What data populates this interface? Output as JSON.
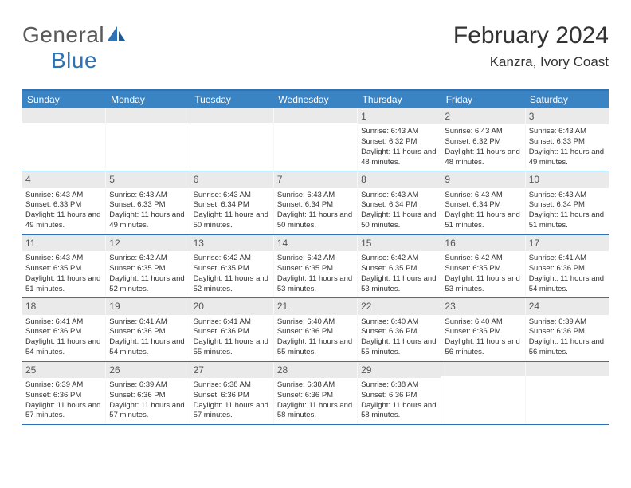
{
  "logo": {
    "text1": "General",
    "text2": "Blue"
  },
  "header": {
    "month_title": "February 2024",
    "location": "Kanzra, Ivory Coast"
  },
  "colors": {
    "header_bar": "#3a84c4",
    "border": "#2d73b5",
    "daynum_bg": "#eaeaea",
    "text": "#333333",
    "logo_gray": "#5a5a5a",
    "logo_blue": "#2d73b5"
  },
  "day_names": [
    "Sunday",
    "Monday",
    "Tuesday",
    "Wednesday",
    "Thursday",
    "Friday",
    "Saturday"
  ],
  "weeks": [
    [
      {
        "n": "",
        "sr": "",
        "ss": "",
        "dl": ""
      },
      {
        "n": "",
        "sr": "",
        "ss": "",
        "dl": ""
      },
      {
        "n": "",
        "sr": "",
        "ss": "",
        "dl": ""
      },
      {
        "n": "",
        "sr": "",
        "ss": "",
        "dl": ""
      },
      {
        "n": "1",
        "sr": "Sunrise: 6:43 AM",
        "ss": "Sunset: 6:32 PM",
        "dl": "Daylight: 11 hours and 48 minutes."
      },
      {
        "n": "2",
        "sr": "Sunrise: 6:43 AM",
        "ss": "Sunset: 6:32 PM",
        "dl": "Daylight: 11 hours and 48 minutes."
      },
      {
        "n": "3",
        "sr": "Sunrise: 6:43 AM",
        "ss": "Sunset: 6:33 PM",
        "dl": "Daylight: 11 hours and 49 minutes."
      }
    ],
    [
      {
        "n": "4",
        "sr": "Sunrise: 6:43 AM",
        "ss": "Sunset: 6:33 PM",
        "dl": "Daylight: 11 hours and 49 minutes."
      },
      {
        "n": "5",
        "sr": "Sunrise: 6:43 AM",
        "ss": "Sunset: 6:33 PM",
        "dl": "Daylight: 11 hours and 49 minutes."
      },
      {
        "n": "6",
        "sr": "Sunrise: 6:43 AM",
        "ss": "Sunset: 6:34 PM",
        "dl": "Daylight: 11 hours and 50 minutes."
      },
      {
        "n": "7",
        "sr": "Sunrise: 6:43 AM",
        "ss": "Sunset: 6:34 PM",
        "dl": "Daylight: 11 hours and 50 minutes."
      },
      {
        "n": "8",
        "sr": "Sunrise: 6:43 AM",
        "ss": "Sunset: 6:34 PM",
        "dl": "Daylight: 11 hours and 50 minutes."
      },
      {
        "n": "9",
        "sr": "Sunrise: 6:43 AM",
        "ss": "Sunset: 6:34 PM",
        "dl": "Daylight: 11 hours and 51 minutes."
      },
      {
        "n": "10",
        "sr": "Sunrise: 6:43 AM",
        "ss": "Sunset: 6:34 PM",
        "dl": "Daylight: 11 hours and 51 minutes."
      }
    ],
    [
      {
        "n": "11",
        "sr": "Sunrise: 6:43 AM",
        "ss": "Sunset: 6:35 PM",
        "dl": "Daylight: 11 hours and 51 minutes."
      },
      {
        "n": "12",
        "sr": "Sunrise: 6:42 AM",
        "ss": "Sunset: 6:35 PM",
        "dl": "Daylight: 11 hours and 52 minutes."
      },
      {
        "n": "13",
        "sr": "Sunrise: 6:42 AM",
        "ss": "Sunset: 6:35 PM",
        "dl": "Daylight: 11 hours and 52 minutes."
      },
      {
        "n": "14",
        "sr": "Sunrise: 6:42 AM",
        "ss": "Sunset: 6:35 PM",
        "dl": "Daylight: 11 hours and 53 minutes."
      },
      {
        "n": "15",
        "sr": "Sunrise: 6:42 AM",
        "ss": "Sunset: 6:35 PM",
        "dl": "Daylight: 11 hours and 53 minutes."
      },
      {
        "n": "16",
        "sr": "Sunrise: 6:42 AM",
        "ss": "Sunset: 6:35 PM",
        "dl": "Daylight: 11 hours and 53 minutes."
      },
      {
        "n": "17",
        "sr": "Sunrise: 6:41 AM",
        "ss": "Sunset: 6:36 PM",
        "dl": "Daylight: 11 hours and 54 minutes."
      }
    ],
    [
      {
        "n": "18",
        "sr": "Sunrise: 6:41 AM",
        "ss": "Sunset: 6:36 PM",
        "dl": "Daylight: 11 hours and 54 minutes."
      },
      {
        "n": "19",
        "sr": "Sunrise: 6:41 AM",
        "ss": "Sunset: 6:36 PM",
        "dl": "Daylight: 11 hours and 54 minutes."
      },
      {
        "n": "20",
        "sr": "Sunrise: 6:41 AM",
        "ss": "Sunset: 6:36 PM",
        "dl": "Daylight: 11 hours and 55 minutes."
      },
      {
        "n": "21",
        "sr": "Sunrise: 6:40 AM",
        "ss": "Sunset: 6:36 PM",
        "dl": "Daylight: 11 hours and 55 minutes."
      },
      {
        "n": "22",
        "sr": "Sunrise: 6:40 AM",
        "ss": "Sunset: 6:36 PM",
        "dl": "Daylight: 11 hours and 55 minutes."
      },
      {
        "n": "23",
        "sr": "Sunrise: 6:40 AM",
        "ss": "Sunset: 6:36 PM",
        "dl": "Daylight: 11 hours and 56 minutes."
      },
      {
        "n": "24",
        "sr": "Sunrise: 6:39 AM",
        "ss": "Sunset: 6:36 PM",
        "dl": "Daylight: 11 hours and 56 minutes."
      }
    ],
    [
      {
        "n": "25",
        "sr": "Sunrise: 6:39 AM",
        "ss": "Sunset: 6:36 PM",
        "dl": "Daylight: 11 hours and 57 minutes."
      },
      {
        "n": "26",
        "sr": "Sunrise: 6:39 AM",
        "ss": "Sunset: 6:36 PM",
        "dl": "Daylight: 11 hours and 57 minutes."
      },
      {
        "n": "27",
        "sr": "Sunrise: 6:38 AM",
        "ss": "Sunset: 6:36 PM",
        "dl": "Daylight: 11 hours and 57 minutes."
      },
      {
        "n": "28",
        "sr": "Sunrise: 6:38 AM",
        "ss": "Sunset: 6:36 PM",
        "dl": "Daylight: 11 hours and 58 minutes."
      },
      {
        "n": "29",
        "sr": "Sunrise: 6:38 AM",
        "ss": "Sunset: 6:36 PM",
        "dl": "Daylight: 11 hours and 58 minutes."
      },
      {
        "n": "",
        "sr": "",
        "ss": "",
        "dl": ""
      },
      {
        "n": "",
        "sr": "",
        "ss": "",
        "dl": ""
      }
    ]
  ]
}
